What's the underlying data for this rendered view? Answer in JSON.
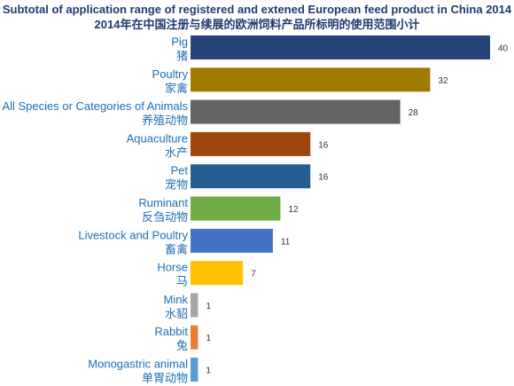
{
  "chart_data": {
    "type": "bar",
    "orientation": "horizontal",
    "title": "Subtotal of application range of registered and extened European feed product in China 2014",
    "subtitle": "2014年在中国注册与续展的欧洲饲料产品所标明的使用范围小计",
    "categories": [
      "Pig",
      "Poultry",
      "All Species or Categories of Animals",
      "Aquaculture",
      "Pet",
      "Ruminant",
      "Livestock and Poultry",
      "Horse",
      "Mink",
      "Rabbit",
      "Monogastric animal"
    ],
    "categories_zh": [
      "猪",
      "家禽",
      "养殖动物",
      "水产",
      "宠物",
      "反刍动物",
      "畜禽",
      "马",
      "水貂",
      "兔",
      "单胃动物"
    ],
    "values": [
      40,
      32,
      28,
      16,
      16,
      12,
      11,
      7,
      1,
      1,
      1
    ],
    "colors": [
      "#264478",
      "#9E7A00",
      "#636363",
      "#9E480E",
      "#255E91",
      "#70AD47",
      "#4472C4",
      "#FFC000",
      "#A5A5A5",
      "#ED7D31",
      "#5B9BD5"
    ],
    "xlim": [
      0,
      40
    ],
    "grid": false,
    "legend": "none",
    "xlabel": "",
    "ylabel": ""
  }
}
